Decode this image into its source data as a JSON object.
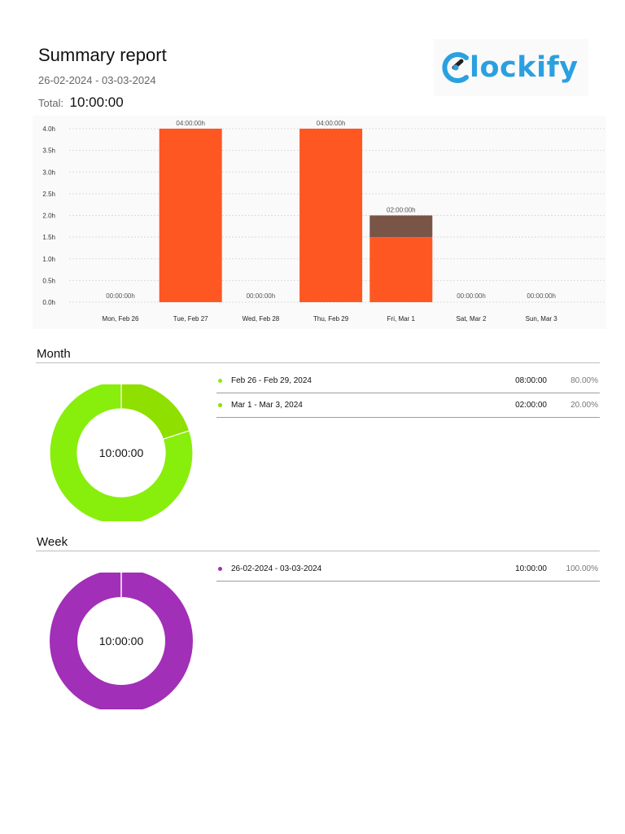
{
  "report": {
    "title": "Summary report",
    "date_range": "26-02-2024 - 03-03-2024",
    "total_label": "Total:",
    "total_value": "10:00:00"
  },
  "logo": {
    "text": "Clockify"
  },
  "chart_data": {
    "type": "bar",
    "categories": [
      "Mon, Feb 26",
      "Tue, Feb 27",
      "Wed, Feb 28",
      "Thu, Feb 29",
      "Fri, Mar 1",
      "Sat, Mar 2",
      "Sun, Mar 3"
    ],
    "series": [
      {
        "values": [
          0,
          4.0,
          0,
          4.0,
          1.5,
          0,
          0
        ],
        "color": "#ff5722"
      },
      {
        "values": [
          0,
          0,
          0,
          0,
          0.5,
          0,
          0
        ],
        "color": "#795548"
      }
    ],
    "stacked": true,
    "data_labels": [
      "00:00:00h",
      "04:00:00h",
      "00:00:00h",
      "04:00:00h",
      "02:00:00h",
      "00:00:00h",
      "00:00:00h"
    ],
    "y_ticks": [
      "0.0h",
      "0.5h",
      "1.0h",
      "1.5h",
      "2.0h",
      "2.5h",
      "3.0h",
      "3.5h",
      "4.0h"
    ],
    "ylim": [
      0,
      4.0
    ],
    "grid": true,
    "title": "",
    "xlabel": "",
    "ylabel": ""
  },
  "month": {
    "title": "Month",
    "center": "10:00:00",
    "rows": [
      {
        "label": "Feb 26 - Feb 29, 2024",
        "duration": "08:00:00",
        "percent": "80.00%",
        "share": 0.8,
        "color": "#88ee0b"
      },
      {
        "label": "Mar 1 - Mar 3, 2024",
        "duration": "02:00:00",
        "percent": "20.00%",
        "share": 0.2,
        "color": "#8fdf00"
      }
    ]
  },
  "week": {
    "title": "Week",
    "center": "10:00:00",
    "rows": [
      {
        "label": "26-02-2024 - 03-03-2024",
        "duration": "10:00:00",
        "percent": "100.00%",
        "share": 1.0,
        "color": "#a12fb8"
      }
    ]
  }
}
